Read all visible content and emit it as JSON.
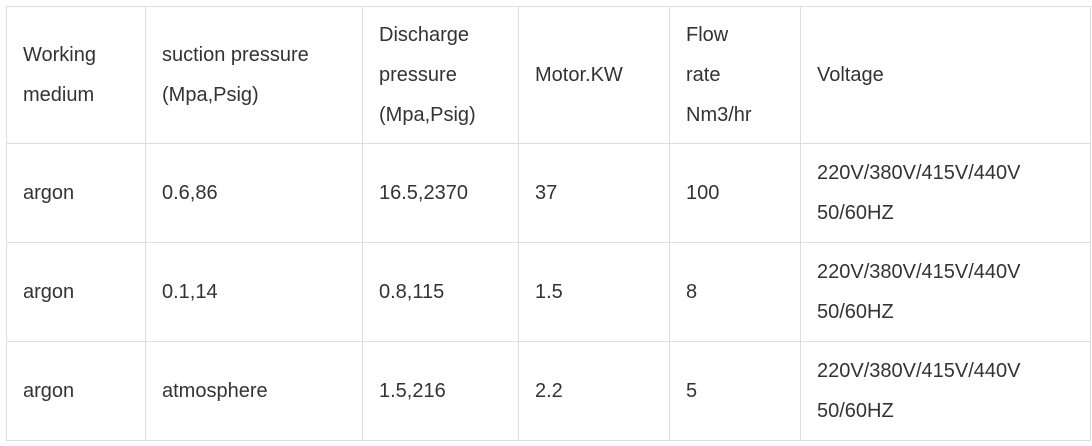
{
  "table": {
    "header": [
      [
        "Working",
        "medium"
      ],
      [
        "suction pressure",
        "(Mpa,Psig)"
      ],
      [
        "Discharge",
        "pressure",
        "(Mpa,Psig)"
      ],
      [
        "Motor.KW"
      ],
      [
        "Flow",
        "rate",
        "Nm3/hr"
      ],
      [
        "Voltage"
      ]
    ],
    "rows": [
      [
        [
          "argon"
        ],
        [
          "0.6,86"
        ],
        [
          "16.5,2370"
        ],
        [
          "37"
        ],
        [
          "100"
        ],
        [
          "220V/380V/415V/440V",
          "50/60HZ"
        ]
      ],
      [
        [
          "argon"
        ],
        [
          "0.1,14"
        ],
        [
          "0.8,115"
        ],
        [
          "1.5"
        ],
        [
          "8"
        ],
        [
          "220V/380V/415V/440V",
          "50/60HZ"
        ]
      ],
      [
        [
          "argon"
        ],
        [
          "atmosphere"
        ],
        [
          "1.5,216"
        ],
        [
          "2.2"
        ],
        [
          "5"
        ],
        [
          "220V/380V/415V/440V",
          "50/60HZ"
        ]
      ]
    ]
  }
}
